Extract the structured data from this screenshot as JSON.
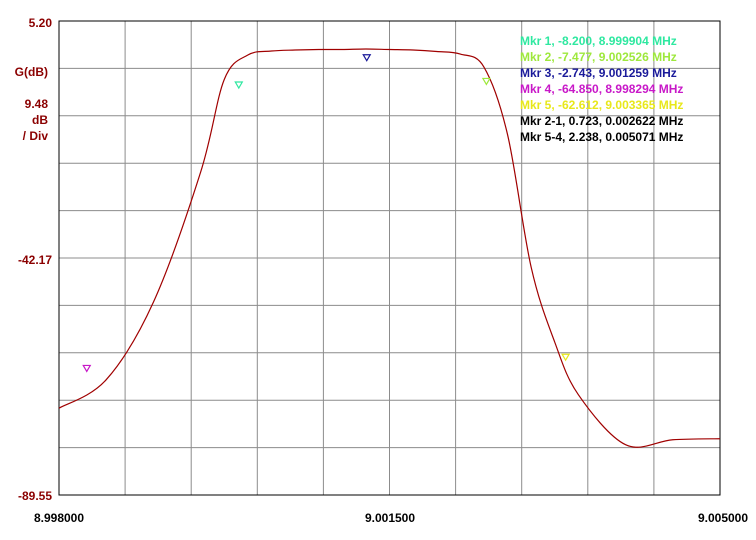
{
  "chart_data": {
    "type": "line",
    "ylabel": "G(dB)",
    "scale_value": "9.48",
    "scale_unit": "dB",
    "scale_div": "/ Div",
    "y_ticks": [
      "5.20",
      "-42.17",
      "-89.55"
    ],
    "x_ticks": [
      "8.998000",
      "9.001500",
      "9.005000"
    ],
    "xlim": [
      8.998,
      9.005
    ],
    "ylim": [
      -89.55,
      5.2
    ],
    "grid": true,
    "colors": {
      "trace": "#a00000",
      "grid": "#8c8c8c",
      "axis": "#000000"
    },
    "series": [
      {
        "x": [
          8.998,
          8.9985,
          8.999,
          8.9995,
          8.99975,
          9.0,
          9.00025,
          9.0005,
          9.00075,
          9.001,
          9.00125,
          9.0015,
          9.00175,
          9.002,
          9.00225,
          9.0025,
          9.00275,
          9.003,
          9.00325,
          9.0035,
          9.004,
          9.0045,
          9.005
        ],
        "y": [
          -72.2,
          -66.5,
          -51.0,
          -25.0,
          -6.5,
          -1.6,
          -0.8,
          -0.6,
          -0.5,
          -0.5,
          -0.4,
          -0.5,
          -0.6,
          -0.9,
          -1.4,
          -4.0,
          -17.5,
          -44.0,
          -59.0,
          -69.5,
          -79.5,
          -78.5,
          -78.3
        ]
      }
    ],
    "markers": [
      {
        "label": "Mkr 1, -8.200, 8.999904 MHz",
        "x": 8.999904,
        "y": -8.2,
        "color": "#2ee8a0",
        "dir": "down"
      },
      {
        "label": "Mkr 2, -7.477, 9.002526 MHz",
        "x": 9.002526,
        "y": -7.477,
        "color": "#9ee83c",
        "dir": "down"
      },
      {
        "label": "Mkr 3, -2.743, 9.001259 MHz",
        "x": 9.001259,
        "y": -2.743,
        "color": "#1a1a9a",
        "dir": "down"
      },
      {
        "label": "Mkr 4, -64.850, 8.998294 MHz",
        "x": 8.998294,
        "y": -64.85,
        "color": "#c818c8",
        "dir": "down"
      },
      {
        "label": "Mkr 5, -62.612, 9.003365 MHz",
        "x": 9.003365,
        "y": -62.612,
        "color": "#e8e81a",
        "dir": "down"
      }
    ],
    "delta_markers": [
      {
        "label": "Mkr 2-1, 0.723, 0.002622 MHz",
        "color": "#000000"
      },
      {
        "label": "Mkr 5-4, 2.238, 0.005071 MHz",
        "color": "#000000"
      }
    ]
  }
}
